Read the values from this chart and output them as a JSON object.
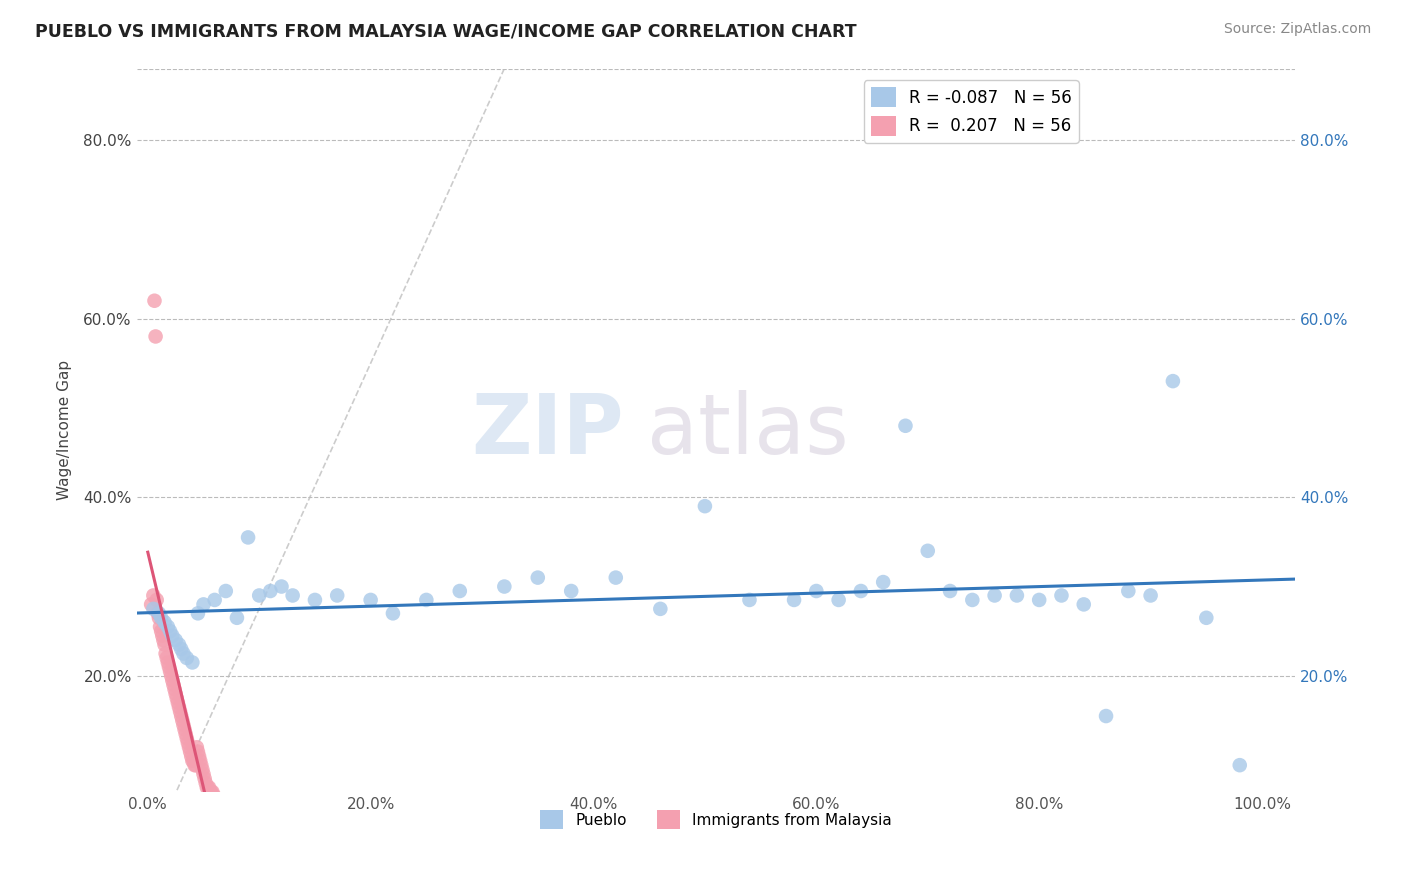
{
  "title": "PUEBLO VS IMMIGRANTS FROM MALAYSIA WAGE/INCOME GAP CORRELATION CHART",
  "source": "Source: ZipAtlas.com",
  "ylabel": "Wage/Income Gap",
  "legend_pueblo": "Pueblo",
  "legend_immigrants": "Immigrants from Malaysia",
  "r_pueblo": "-0.087",
  "r_immigrants": "0.207",
  "n_pueblo": 56,
  "n_immigrants": 56,
  "xtick_labels": [
    "0.0%",
    "20.0%",
    "40.0%",
    "60.0%",
    "80.0%",
    "100.0%"
  ],
  "xtick_vals": [
    0.0,
    0.2,
    0.4,
    0.6,
    0.8,
    1.0
  ],
  "ytick_labels": [
    "20.0%",
    "40.0%",
    "60.0%",
    "80.0%"
  ],
  "ytick_vals": [
    0.2,
    0.4,
    0.6,
    0.8
  ],
  "xlim": [
    -0.01,
    1.03
  ],
  "ylim": [
    0.07,
    0.88
  ],
  "color_pueblo": "#a8c8e8",
  "color_immigrants": "#f4a0b0",
  "trendline_pueblo": "#3377bb",
  "trendline_immigrants": "#dd5577",
  "watermark_1": "ZIP",
  "watermark_2": "atlas",
  "pueblo_x": [
    0.005,
    0.01,
    0.012,
    0.015,
    0.018,
    0.02,
    0.022,
    0.025,
    0.028,
    0.03,
    0.032,
    0.035,
    0.04,
    0.045,
    0.05,
    0.06,
    0.07,
    0.08,
    0.09,
    0.1,
    0.11,
    0.12,
    0.13,
    0.15,
    0.17,
    0.2,
    0.22,
    0.25,
    0.28,
    0.32,
    0.35,
    0.38,
    0.42,
    0.46,
    0.5,
    0.54,
    0.58,
    0.6,
    0.62,
    0.64,
    0.66,
    0.68,
    0.7,
    0.72,
    0.74,
    0.76,
    0.78,
    0.8,
    0.82,
    0.84,
    0.86,
    0.88,
    0.9,
    0.92,
    0.95,
    0.98
  ],
  "pueblo_y": [
    0.275,
    0.27,
    0.265,
    0.26,
    0.255,
    0.25,
    0.245,
    0.24,
    0.235,
    0.23,
    0.225,
    0.22,
    0.215,
    0.27,
    0.28,
    0.285,
    0.295,
    0.265,
    0.355,
    0.29,
    0.295,
    0.3,
    0.29,
    0.285,
    0.29,
    0.285,
    0.27,
    0.285,
    0.295,
    0.3,
    0.31,
    0.295,
    0.31,
    0.275,
    0.39,
    0.285,
    0.285,
    0.295,
    0.285,
    0.295,
    0.305,
    0.48,
    0.34,
    0.295,
    0.285,
    0.29,
    0.29,
    0.285,
    0.29,
    0.28,
    0.155,
    0.295,
    0.29,
    0.53,
    0.265,
    0.1
  ],
  "immigrants_x": [
    0.003,
    0.005,
    0.006,
    0.007,
    0.008,
    0.009,
    0.01,
    0.011,
    0.012,
    0.013,
    0.014,
    0.015,
    0.016,
    0.017,
    0.018,
    0.019,
    0.02,
    0.021,
    0.022,
    0.023,
    0.024,
    0.025,
    0.026,
    0.027,
    0.028,
    0.029,
    0.03,
    0.031,
    0.032,
    0.033,
    0.034,
    0.035,
    0.036,
    0.037,
    0.038,
    0.039,
    0.04,
    0.041,
    0.042,
    0.043,
    0.044,
    0.045,
    0.046,
    0.047,
    0.048,
    0.049,
    0.05,
    0.051,
    0.052,
    0.053,
    0.054,
    0.055,
    0.056,
    0.057,
    0.058,
    0.06
  ],
  "immigrants_y": [
    0.28,
    0.29,
    0.62,
    0.58,
    0.285,
    0.27,
    0.265,
    0.255,
    0.25,
    0.245,
    0.24,
    0.235,
    0.225,
    0.22,
    0.215,
    0.21,
    0.205,
    0.2,
    0.195,
    0.19,
    0.185,
    0.18,
    0.175,
    0.17,
    0.165,
    0.16,
    0.155,
    0.15,
    0.145,
    0.14,
    0.135,
    0.13,
    0.125,
    0.12,
    0.115,
    0.11,
    0.105,
    0.105,
    0.1,
    0.1,
    0.12,
    0.115,
    0.11,
    0.105,
    0.1,
    0.095,
    0.09,
    0.085,
    0.08,
    0.075,
    0.075,
    0.075,
    0.07,
    0.07,
    0.07,
    0.065
  ],
  "diag_line": [
    [
      0.0,
      0.0
    ],
    [
      0.32,
      0.88
    ]
  ]
}
